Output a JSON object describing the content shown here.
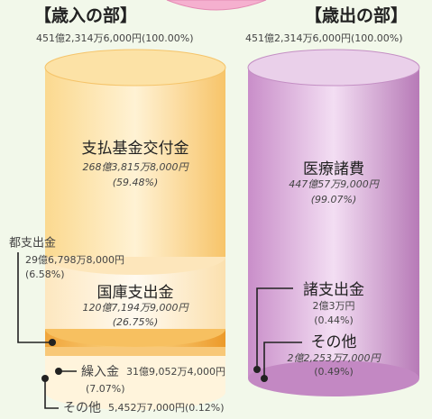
{
  "revenue": {
    "title": "【歳入の部】",
    "total": "451億2,314万6,000円(100.00%)",
    "items": [
      {
        "name": "支払基金交付金",
        "amount": "268億3,815万8,000円",
        "percent": "(59.48%)"
      },
      {
        "name": "都支出金",
        "amount": "29億6,798万8,000円",
        "percent": "(6.58%)"
      },
      {
        "name": "国庫支出金",
        "amount": "120億7,194万9,000円",
        "percent": "(26.75%)"
      },
      {
        "name": "繰入金",
        "amount": "31億9,052万4,000円",
        "percent": "(7.07%)"
      },
      {
        "name": "その他",
        "amount": "5,452万7,000円(0.12%)"
      }
    ]
  },
  "expenditure": {
    "title": "【歳出の部】",
    "total": "451億2,314万6,000円(100.00%)",
    "items": [
      {
        "name": "医療諸費",
        "amount": "447億57万9,000円",
        "percent": "(99.07%)"
      },
      {
        "name": "諸支出金",
        "amount": "2億3万円",
        "percent": "(0.44%)"
      },
      {
        "name": "その他",
        "amount": "2億2,253万7,000円",
        "percent": "(0.49%)"
      }
    ]
  }
}
